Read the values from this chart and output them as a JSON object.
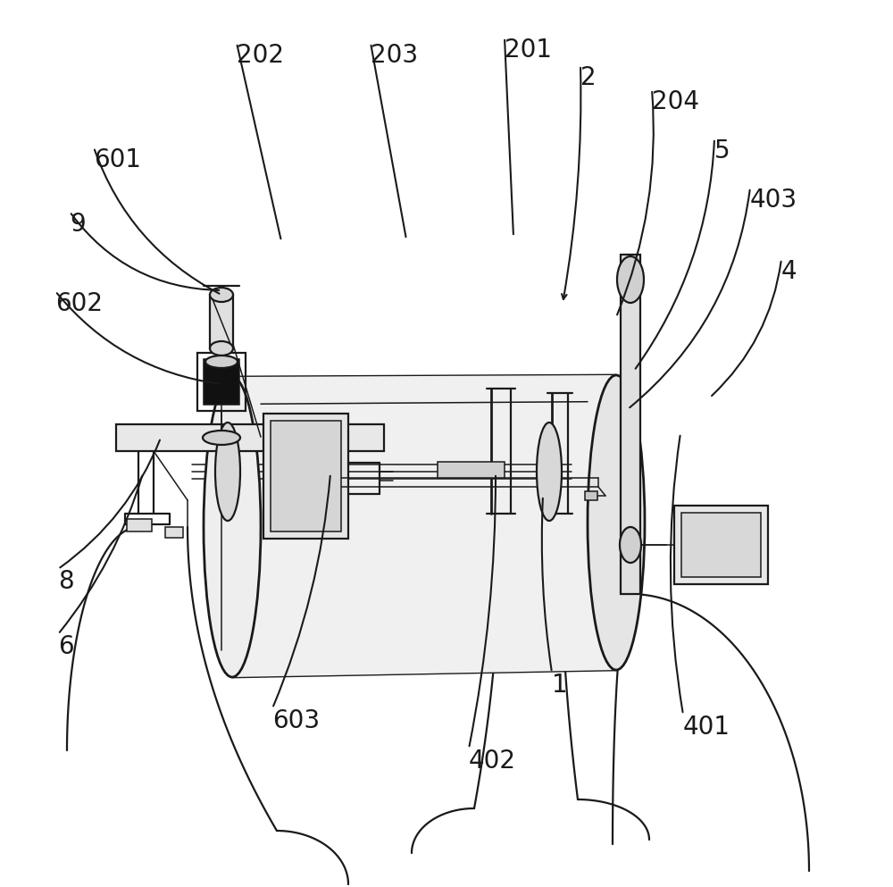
{
  "bg_color": "#ffffff",
  "line_color": "#1a1a1a",
  "lw": 1.6,
  "lw_thin": 1.1,
  "lw_thick": 2.0,
  "fig_width": 10.0,
  "fig_height": 9.93,
  "fs": 20
}
